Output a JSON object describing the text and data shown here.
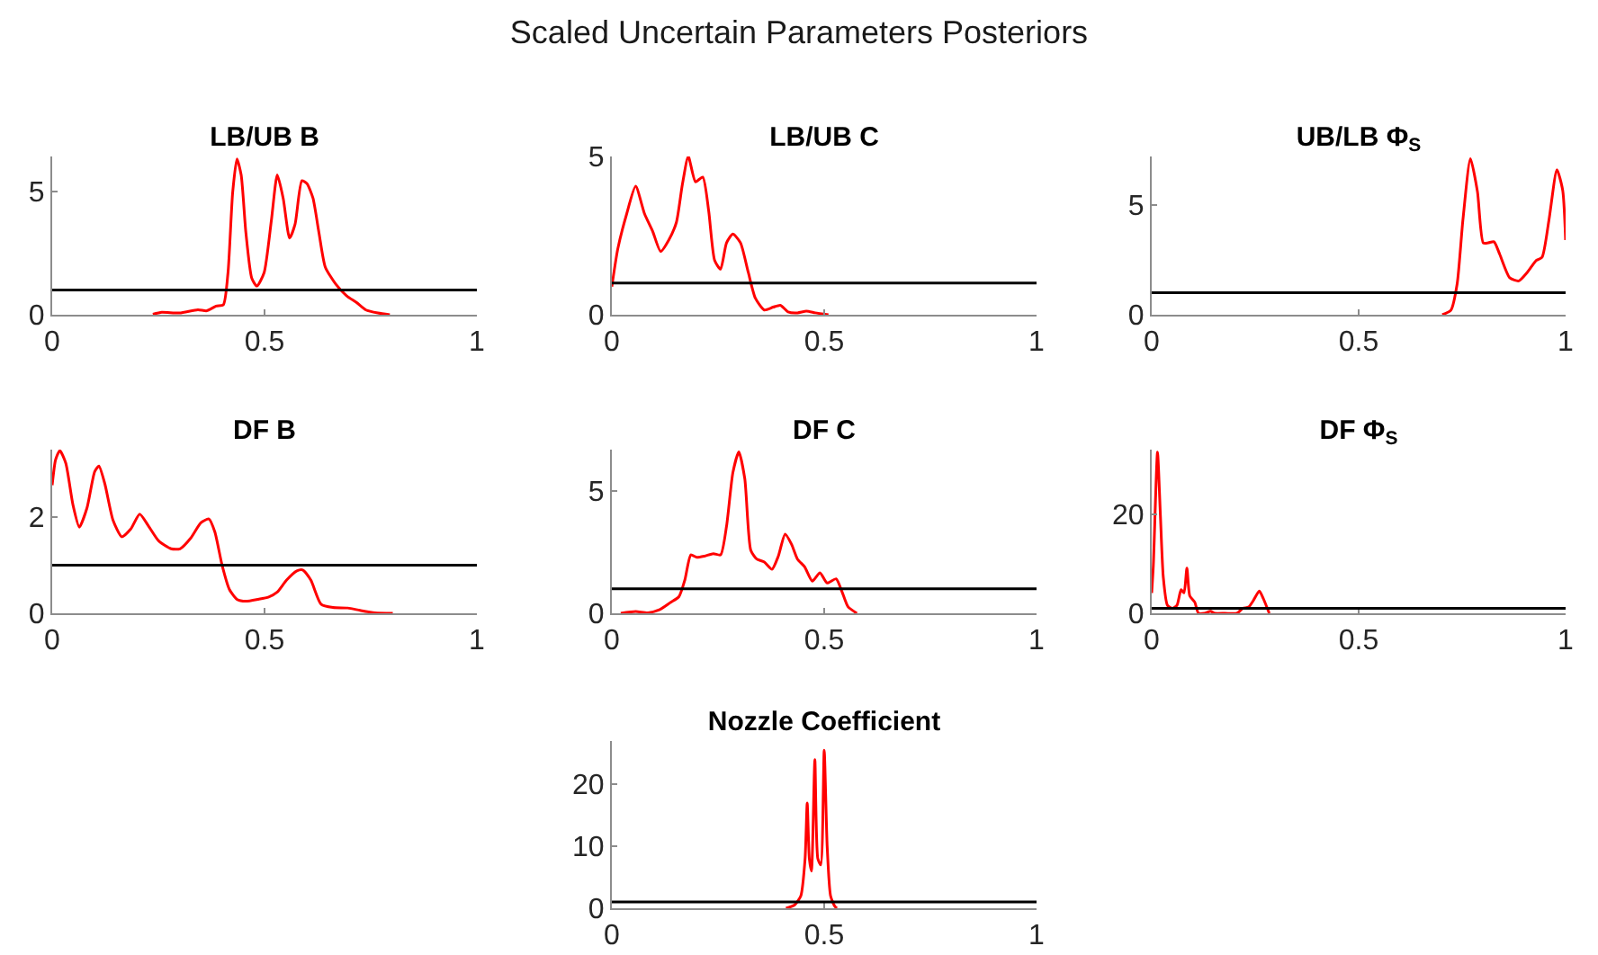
{
  "chart_data": [
    {
      "type": "other",
      "title": "Scaled Uncertain Parameters Posteriors"
    },
    {
      "type": "line",
      "title": "LB/UB B",
      "x": [
        0.237,
        0.258,
        0.3,
        0.343,
        0.364,
        0.386,
        0.403,
        0.414,
        0.425,
        0.435,
        0.445,
        0.456,
        0.47,
        0.482,
        0.499,
        0.516,
        0.53,
        0.544,
        0.559,
        0.572,
        0.588,
        0.6,
        0.614,
        0.628,
        0.643,
        0.668,
        0.693,
        0.717,
        0.739,
        0.767,
        0.795
      ],
      "series": [
        {
          "color": "#ff0000",
          "values": [
            0.02,
            0.1,
            0.07,
            0.2,
            0.16,
            0.35,
            0.4,
            1.7,
            4.95,
            6.3,
            5.65,
            3.33,
            1.47,
            1.16,
            1.7,
            3.8,
            5.65,
            4.7,
            3.1,
            3.67,
            5.42,
            5.3,
            4.72,
            3.33,
            1.93,
            1.23,
            0.77,
            0.49,
            0.19,
            0.07,
            0
          ]
        }
      ],
      "xlim": [
        0,
        1
      ],
      "xticks": [
        0,
        0.5,
        1
      ],
      "ylim": [
        0,
        6.4
      ],
      "yticks": [
        0,
        5
      ],
      "ref_lines": [
        {
          "axis": "y",
          "value": 1,
          "color": "#000000"
        }
      ]
    },
    {
      "type": "line",
      "title": "LB/UB C",
      "x": [
        0,
        0.014,
        0.035,
        0.056,
        0.077,
        0.096,
        0.115,
        0.134,
        0.152,
        0.166,
        0.18,
        0.197,
        0.214,
        0.228,
        0.242,
        0.256,
        0.27,
        0.285,
        0.303,
        0.321,
        0.338,
        0.359,
        0.38,
        0.397,
        0.415,
        0.437,
        0.458,
        0.479,
        0.51
      ],
      "series": [
        {
          "color": "#ff0000",
          "values": [
            0.89,
            2.08,
            3.19,
            4.06,
            3.19,
            2.64,
            2.0,
            2.36,
            2.92,
            4.11,
            5.0,
            4.2,
            4.35,
            3.28,
            1.72,
            1.44,
            2.27,
            2.55,
            2.27,
            1.35,
            0.52,
            0.15,
            0.24,
            0.3,
            0.09,
            0.06,
            0.11,
            0.06,
            0
          ]
        }
      ],
      "xlim": [
        0,
        1
      ],
      "xticks": [
        0,
        0.5,
        1
      ],
      "ylim": [
        0,
        5
      ],
      "yticks": [
        0,
        5
      ],
      "ref_lines": [
        {
          "axis": "y",
          "value": 1,
          "color": "#000000"
        }
      ]
    },
    {
      "type": "line",
      "title": "UB/LB Φ$_{S}$",
      "x": [
        0.702,
        0.723,
        0.738,
        0.752,
        0.77,
        0.787,
        0.801,
        0.813,
        0.827,
        0.841,
        0.865,
        0.887,
        0.908,
        0.929,
        0.943,
        0.96,
        0.979,
        0.993,
        1.0
      ],
      "series": [
        {
          "color": "#ff0000",
          "values": [
            0,
            0.21,
            1.41,
            4.34,
            7.1,
            5.6,
            3.27,
            3.27,
            3.32,
            2.74,
            1.68,
            1.54,
            1.94,
            2.47,
            2.61,
            4.34,
            6.6,
            5.66,
            3.4
          ]
        }
      ],
      "xlim": [
        0,
        1
      ],
      "xticks": [
        0,
        0.5,
        1
      ],
      "ylim": [
        0,
        7.2
      ],
      "yticks": [
        0,
        5
      ],
      "ref_lines": [
        {
          "axis": "y",
          "value": 1,
          "color": "#000000"
        }
      ]
    },
    {
      "type": "line",
      "title": "DF B",
      "x": [
        0,
        0.008,
        0.018,
        0.032,
        0.049,
        0.064,
        0.082,
        0.1,
        0.11,
        0.124,
        0.143,
        0.164,
        0.185,
        0.206,
        0.227,
        0.251,
        0.28,
        0.301,
        0.326,
        0.35,
        0.369,
        0.383,
        0.4,
        0.417,
        0.435,
        0.456,
        0.484,
        0.51,
        0.53,
        0.552,
        0.576,
        0.59,
        0.609,
        0.633,
        0.661,
        0.696,
        0.725,
        0.76,
        0.802
      ],
      "series": [
        {
          "color": "#ff0000",
          "values": [
            2.66,
            3.19,
            3.38,
            3.12,
            2.25,
            1.79,
            2.19,
            2.94,
            3.06,
            2.69,
            1.94,
            1.59,
            1.75,
            2.06,
            1.81,
            1.5,
            1.34,
            1.34,
            1.56,
            1.88,
            1.96,
            1.69,
            1.0,
            0.5,
            0.29,
            0.25,
            0.29,
            0.34,
            0.44,
            0.69,
            0.88,
            0.9,
            0.69,
            0.19,
            0.12,
            0.11,
            0.06,
            0.01,
            0
          ]
        }
      ],
      "xlim": [
        0,
        1
      ],
      "xticks": [
        0,
        0.5,
        1
      ],
      "ylim": [
        0,
        3.4
      ],
      "yticks": [
        0,
        2
      ],
      "ref_lines": [
        {
          "axis": "y",
          "value": 1,
          "color": "#000000"
        }
      ]
    },
    {
      "type": "line",
      "title": "DF C",
      "x": [
        0.021,
        0.056,
        0.085,
        0.113,
        0.138,
        0.158,
        0.172,
        0.186,
        0.2,
        0.218,
        0.239,
        0.256,
        0.27,
        0.285,
        0.299,
        0.313,
        0.327,
        0.341,
        0.359,
        0.377,
        0.392,
        0.408,
        0.423,
        0.437,
        0.454,
        0.472,
        0.49,
        0.507,
        0.528,
        0.542,
        0.556,
        0.577
      ],
      "series": [
        {
          "color": "#ff0000",
          "values": [
            0,
            0.07,
            0.02,
            0.15,
            0.44,
            0.68,
            1.37,
            2.39,
            2.29,
            2.34,
            2.44,
            2.39,
            3.56,
            5.76,
            6.61,
            5.51,
            2.59,
            2.22,
            2.1,
            1.8,
            2.34,
            3.24,
            2.83,
            2.22,
            1.9,
            1.32,
            1.66,
            1.24,
            1.41,
            0.88,
            0.27,
            0
          ]
        }
      ],
      "xlim": [
        0,
        1
      ],
      "xticks": [
        0,
        0.5,
        1
      ],
      "ylim": [
        0,
        6.7
      ],
      "yticks": [
        0,
        5
      ],
      "ref_lines": [
        {
          "axis": "y",
          "value": 1,
          "color": "#000000"
        }
      ]
    },
    {
      "type": "line",
      "title": "DF Φ$_{S}$",
      "x": [
        0,
        0.004,
        0.014,
        0.021,
        0.028,
        0.038,
        0.05,
        0.061,
        0.071,
        0.078,
        0.085,
        0.092,
        0.104,
        0.113,
        0.128,
        0.142,
        0.152,
        0.177,
        0.206,
        0.22,
        0.234,
        0.245,
        0.26,
        0.27,
        0.284
      ],
      "series": [
        {
          "color": "#ff0000",
          "values": [
            4.1,
            9.75,
            32.5,
            19.75,
            7.25,
            1.6,
            1.0,
            1.6,
            4.75,
            4.1,
            9.1,
            3.5,
            2.25,
            0,
            0,
            0.4,
            0,
            0,
            0,
            1.0,
            1.25,
            2.5,
            4.5,
            2.9,
            0
          ]
        }
      ],
      "xlim": [
        0,
        1
      ],
      "xticks": [
        0,
        0.5,
        1
      ],
      "ylim": [
        0,
        33
      ],
      "yticks": [
        0,
        20
      ],
      "ref_lines": [
        {
          "axis": "y",
          "value": 1,
          "color": "#000000"
        }
      ]
    },
    {
      "type": "line",
      "title": "Nozzle Coefficient",
      "x": [
        0.41,
        0.43,
        0.445,
        0.455,
        0.46,
        0.465,
        0.47,
        0.478,
        0.485,
        0.492,
        0.5,
        0.507,
        0.515,
        0.525,
        0.53
      ],
      "series": [
        {
          "color": "#ff0000",
          "values": [
            0,
            0.5,
            2,
            8,
            17,
            8,
            6,
            24,
            8,
            7,
            25.5,
            10,
            2,
            0.3,
            0
          ]
        }
      ],
      "xlim": [
        0,
        1
      ],
      "xticks": [
        0,
        0.5,
        1
      ],
      "ylim": [
        0,
        27
      ],
      "yticks": [
        0,
        10,
        20
      ],
      "ref_lines": [
        {
          "axis": "y",
          "value": 1,
          "color": "#000000"
        }
      ]
    }
  ]
}
